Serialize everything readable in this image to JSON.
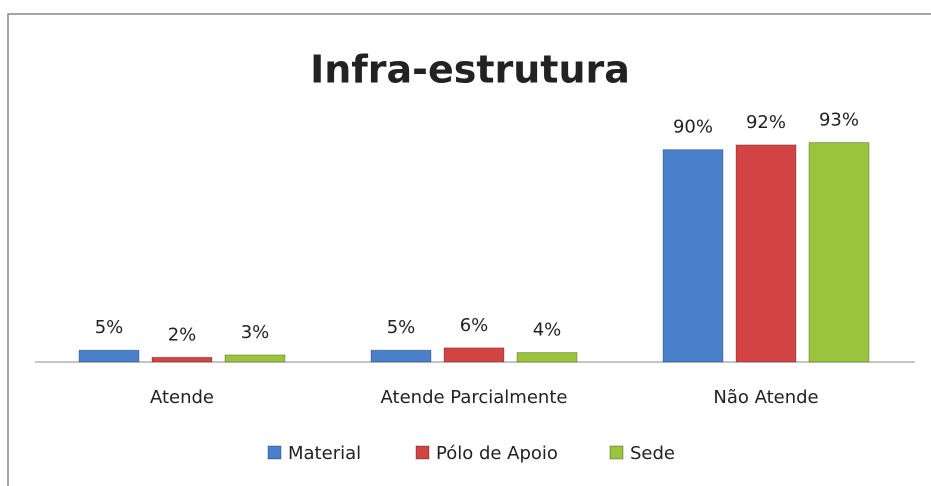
{
  "chart_data": {
    "type": "bar",
    "title": "Infra-estrutura",
    "categories": [
      "Atende",
      "Atende Parcialmente",
      "Não Atende"
    ],
    "series": [
      {
        "name": "Material",
        "color": "#4a7fcb",
        "values": [
          5,
          5,
          90
        ],
        "value_labels": [
          "5%",
          "5%",
          "90%"
        ]
      },
      {
        "name": "Pólo de Apoio",
        "color": "#d24444",
        "values": [
          2,
          6,
          92
        ],
        "value_labels": [
          "2%",
          "6%",
          "92%"
        ]
      },
      {
        "name": "Sede",
        "color": "#9ac43c",
        "values": [
          3,
          4,
          93
        ],
        "value_labels": [
          "3%",
          "4%",
          "93%"
        ]
      }
    ]
  }
}
